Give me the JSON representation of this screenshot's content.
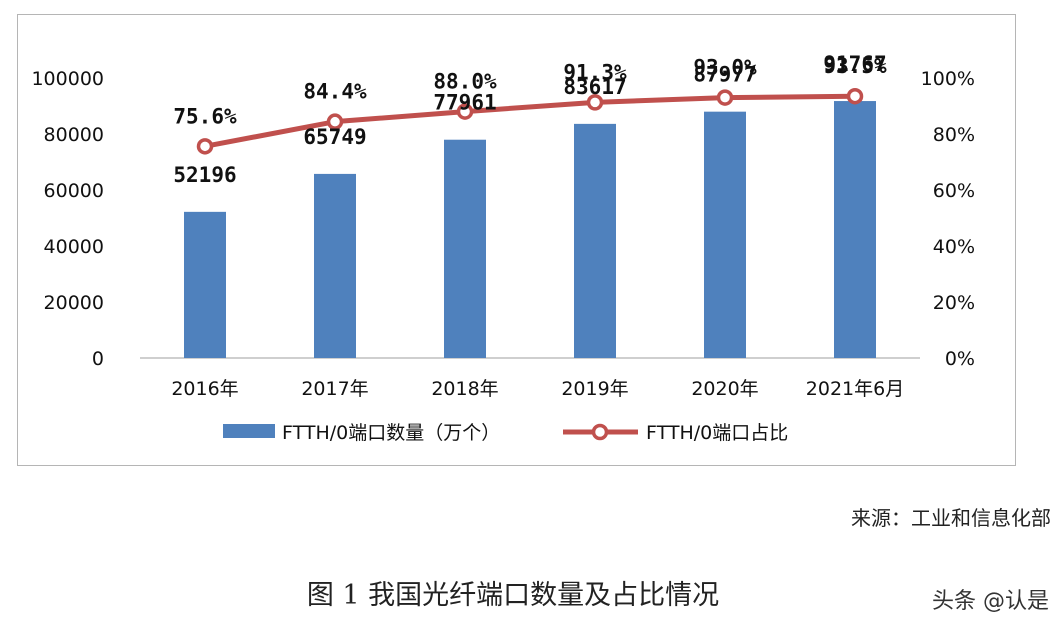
{
  "chart_data": {
    "type": "bar",
    "categories": [
      "2016年",
      "2017年",
      "2018年",
      "2019年",
      "2020年",
      "2021年6月"
    ],
    "series": [
      {
        "name": "FTTH/0端口数量（万个）",
        "type": "bar",
        "axis": "left",
        "values": [
          52196,
          65749,
          77961,
          83617,
          87977,
          91767
        ],
        "labels": [
          "52196",
          "65749",
          "77961",
          "83617",
          "87977",
          "91767"
        ],
        "color": "#4f81bd"
      },
      {
        "name": "FTTH/0端口占比",
        "type": "line",
        "axis": "right",
        "values": [
          75.6,
          84.4,
          88.0,
          91.3,
          93.0,
          93.5
        ],
        "labels": [
          "75.6%",
          "84.4%",
          "88.0%",
          "91.3%",
          "93.0%",
          "93.5%"
        ],
        "color": "#c0504d"
      }
    ],
    "y_left": {
      "min": 0,
      "max": 100000,
      "ticks": [
        "0",
        "20000",
        "40000",
        "60000",
        "80000",
        "100000"
      ]
    },
    "y_right": {
      "min": 0,
      "max": 100,
      "ticks": [
        "0%",
        "20%",
        "40%",
        "60%",
        "80%",
        "100%"
      ]
    },
    "legend_position": "bottom",
    "grid": false
  },
  "source": "来源：工业和信息化部",
  "caption": "图 1 我国光纤端口数量及占比情况",
  "watermark": "头条 @认是"
}
